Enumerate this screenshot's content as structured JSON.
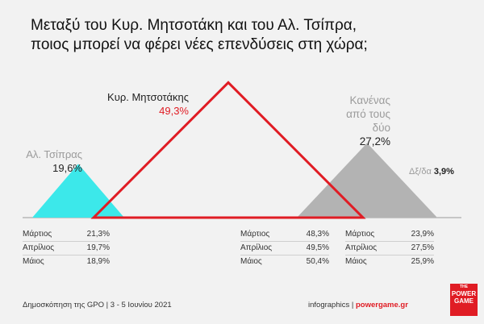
{
  "title": {
    "line1": "Μεταξύ του Κυρ. Μητσοτάκη και του Αλ. Τσίπρα,",
    "line2": "ποιος μπορεί να φέρει νέες επενδύσεις στη χώρα;"
  },
  "labels": {
    "mitsotakis_name": "Κυρ. Μητσοτάκης",
    "mitsotakis_value": "49,3%",
    "tsipras_name": "Αλ. Τσίπρας",
    "tsipras_value": "19,6%",
    "none_line1": "Κανένας",
    "none_line2": "από τους",
    "none_line3": "δύο",
    "none_value": "27,2%",
    "dkna_label": "Δξ/δα",
    "dkna_value": "3,9%"
  },
  "history": {
    "tsipras": [
      {
        "month": "Μάρτιος",
        "value": "21,3%"
      },
      {
        "month": "Απρίλιος",
        "value": "19,7%"
      },
      {
        "month": "Μάιος",
        "value": "18,9%"
      }
    ],
    "mitsotakis": [
      {
        "month": "Μάρτιος",
        "value": "48,3%"
      },
      {
        "month": "Απρίλιος",
        "value": "49,5%"
      },
      {
        "month": "Μάιος",
        "value": "50,4%"
      }
    ],
    "none": [
      {
        "month": "Μάρτιος",
        "value": "23,9%"
      },
      {
        "month": "Απρίλιος",
        "value": "27,5%"
      },
      {
        "month": "Μάιος",
        "value": "25,9%"
      }
    ]
  },
  "footer": {
    "source": "Δημοσκόπηση της GPO | 3 - 5 Ιουνίου 2021",
    "credit_prefix": "infographics | ",
    "credit_site": "powergame.gr"
  },
  "logo": {
    "top": "THE",
    "line1": "POWER",
    "line2": "GAME"
  },
  "colors": {
    "mitsotakis": "#e01c24",
    "tsipras": "#3ce8ea",
    "none": "#b3b3b3"
  },
  "chart_data": {
    "type": "bar",
    "categories": [
      "Κυρ. Μητσοτάκης",
      "Αλ. Τσίπρας",
      "Κανένας από τους δύο",
      "Δξ/δα"
    ],
    "values": [
      49.3,
      19.6,
      27.2,
      3.9
    ],
    "title": "Μεταξύ του Κυρ. Μητσοτάκη και του Αλ. Τσίπρα, ποιος μπορεί να φέρει νέες επενδύσεις στη χώρα;",
    "xlabel": "",
    "ylabel": "",
    "history": {
      "categories": [
        "Μάρτιος",
        "Απρίλιος",
        "Μάιος"
      ],
      "series": [
        {
          "name": "Αλ. Τσίπρας",
          "values": [
            21.3,
            19.7,
            18.9
          ]
        },
        {
          "name": "Κυρ. Μητσοτάκης",
          "values": [
            48.3,
            49.5,
            50.4
          ]
        },
        {
          "name": "Κανένας από τους δύο",
          "values": [
            23.9,
            27.5,
            25.9
          ]
        }
      ]
    }
  }
}
